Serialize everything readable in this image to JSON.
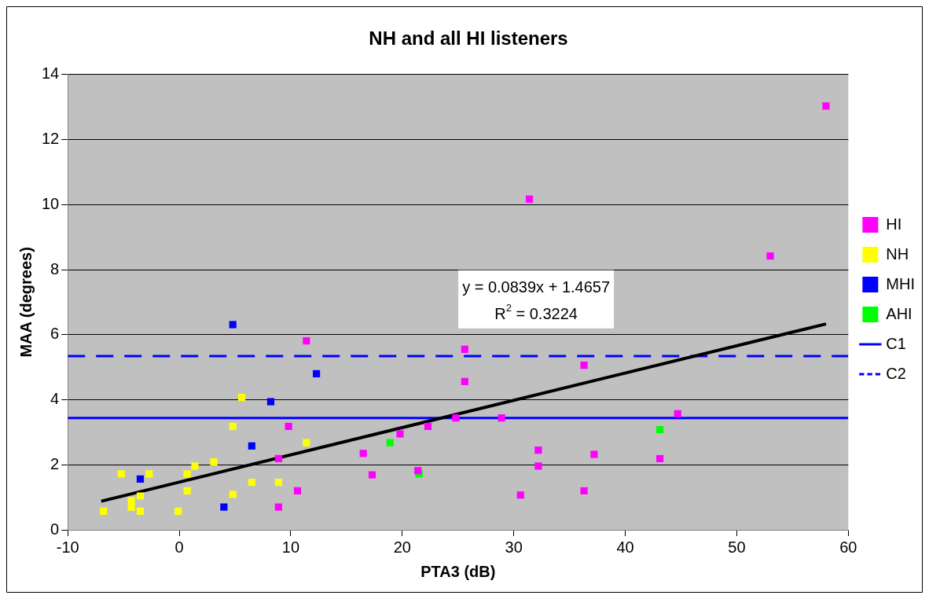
{
  "chart_data": {
    "type": "scatter",
    "title": "NH and all HI listeners",
    "xlabel": "PTA3 (dB)",
    "ylabel": "MAA (degrees)",
    "xlim": [
      -10,
      60
    ],
    "xticks": [
      -10,
      0,
      10,
      20,
      30,
      40,
      50,
      60
    ],
    "ylim": [
      0,
      14
    ],
    "yticks": [
      0,
      2,
      4,
      6,
      8,
      10,
      12,
      14
    ],
    "grid": "y",
    "legend": "right",
    "marker": "square",
    "series": [
      {
        "name": "HI",
        "color": "#ff00ff",
        "x": [
          58.0,
          31.4,
          53.0,
          11.4,
          25.6,
          25.6,
          36.3,
          44.7,
          24.8,
          28.9,
          22.3,
          19.8,
          16.5,
          17.3,
          21.4,
          32.2,
          32.2,
          37.2,
          43.1,
          30.6,
          36.3,
          9.8,
          8.9,
          10.6,
          8.9
        ],
        "values": [
          13.03,
          10.17,
          8.42,
          5.81,
          5.55,
          4.56,
          5.06,
          3.57,
          3.44,
          3.44,
          3.18,
          2.95,
          2.35,
          1.69,
          1.82,
          2.45,
          1.96,
          2.32,
          2.19,
          1.07,
          1.2,
          3.18,
          2.19,
          1.2,
          0.7
        ]
      },
      {
        "name": "NH",
        "color": "#ffff00",
        "x": [
          5.6,
          4.8,
          11.4,
          3.1,
          1.4,
          0.7,
          -5.2,
          -2.7,
          6.5,
          8.9,
          0.7,
          -3.5,
          4.8,
          -4.3,
          -3.5,
          -6.8,
          -0.1,
          -4.3
        ],
        "values": [
          4.07,
          3.18,
          2.68,
          2.09,
          1.96,
          1.72,
          1.72,
          1.72,
          1.46,
          1.46,
          1.2,
          1.04,
          1.09,
          0.7,
          0.57,
          0.57,
          0.57,
          0.9
        ]
      },
      {
        "name": "MHI",
        "color": "#0000ff",
        "x": [
          4.8,
          12.3,
          8.2,
          6.5,
          -3.5,
          4.0
        ],
        "values": [
          6.31,
          4.8,
          3.94,
          2.58,
          1.56,
          0.7
        ]
      },
      {
        "name": "AHI",
        "color": "#00ff00",
        "x": [
          18.9,
          21.5,
          43.1
        ],
        "values": [
          2.68,
          1.72,
          3.08
        ]
      },
      {
        "type": "line",
        "color": "#000000",
        "marker": "none",
        "x": [
          -7,
          58
        ],
        "values": [
          0.88,
          6.33
        ]
      }
    ],
    "ref_lines": [
      {
        "axis": "y",
        "value": 3.44,
        "label": "C1",
        "color": "#0000ff",
        "line_style": "solid"
      },
      {
        "axis": "y",
        "value": 5.34,
        "label": "C2",
        "color": "#0000ff",
        "line_style": "dashed"
      }
    ],
    "annotations": [
      "y = 0.0839x + 1.4657",
      "R$^{2}$ = 0.3224"
    ]
  }
}
